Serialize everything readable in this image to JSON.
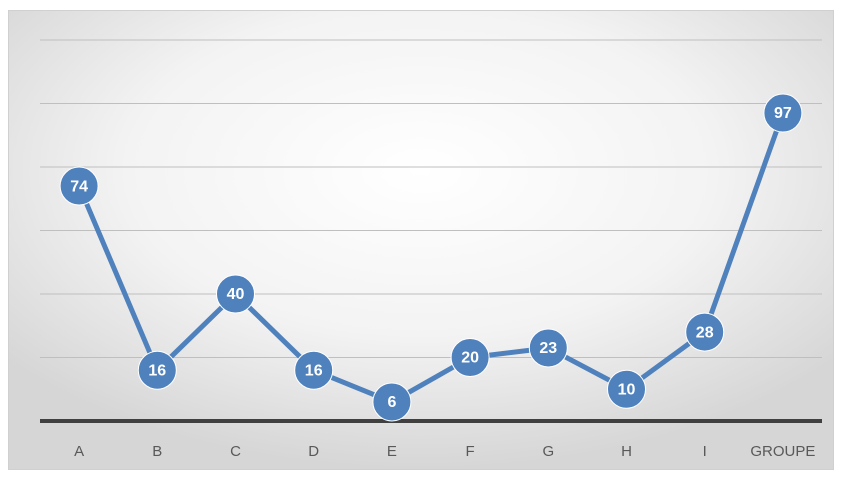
{
  "chart_data": {
    "type": "line",
    "categories": [
      "A",
      "B",
      "C",
      "D",
      "E",
      "F",
      "G",
      "H",
      "I",
      "GROUPE"
    ],
    "values": [
      74,
      16,
      40,
      16,
      6,
      20,
      23,
      10,
      28,
      97
    ],
    "color": "#4f81bd",
    "ylim": [
      0,
      120
    ],
    "yticks": [
      0,
      20,
      40,
      60,
      80,
      100,
      120
    ],
    "grid": true
  }
}
